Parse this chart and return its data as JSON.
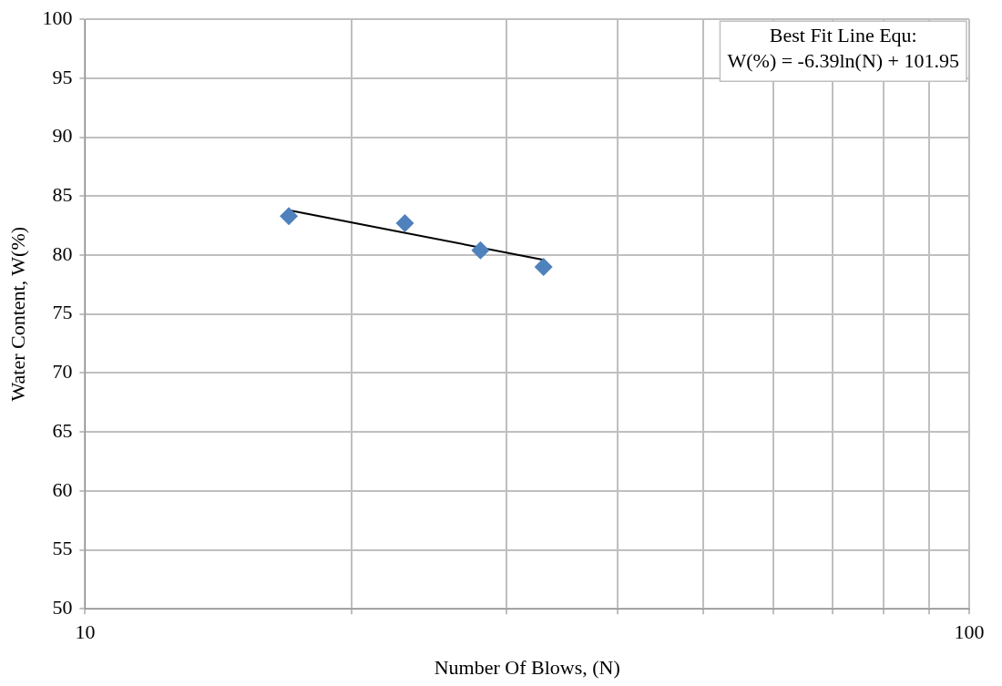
{
  "chart_data": {
    "type": "scatter",
    "xlabel": "Number Of Blows, (N)",
    "ylabel": "Water Content, W(%)",
    "log": "x",
    "grid": true,
    "legend": false,
    "marker": "diamond",
    "xlim": [
      10,
      100
    ],
    "xticks": [
      10,
      {
        "value": 20,
        "label": null
      },
      {
        "value": 30,
        "label": null
      },
      {
        "value": 40,
        "label": null
      },
      {
        "value": 50,
        "label": null
      },
      {
        "value": 60,
        "label": null
      },
      {
        "value": 70,
        "label": null
      },
      {
        "value": 80,
        "label": null
      },
      {
        "value": 90,
        "label": null
      },
      100
    ],
    "ylim": [
      50,
      100
    ],
    "yticks": [
      50,
      55,
      60,
      65,
      70,
      75,
      80,
      85,
      90,
      95,
      100
    ],
    "annotations": [
      "Best Fit Line Equ:\nW(%) = -6.39ln(N) + 101.95"
    ],
    "series": [
      {
        "color": "#4f81bd",
        "x": [
          17,
          23,
          28,
          33
        ],
        "values": [
          83.3,
          82.7,
          80.4,
          79.0
        ]
      },
      {
        "type": "line",
        "color": "#000000",
        "marker": "none",
        "x": [
          17,
          33
        ],
        "values": [
          83.8,
          79.6
        ]
      }
    ]
  }
}
